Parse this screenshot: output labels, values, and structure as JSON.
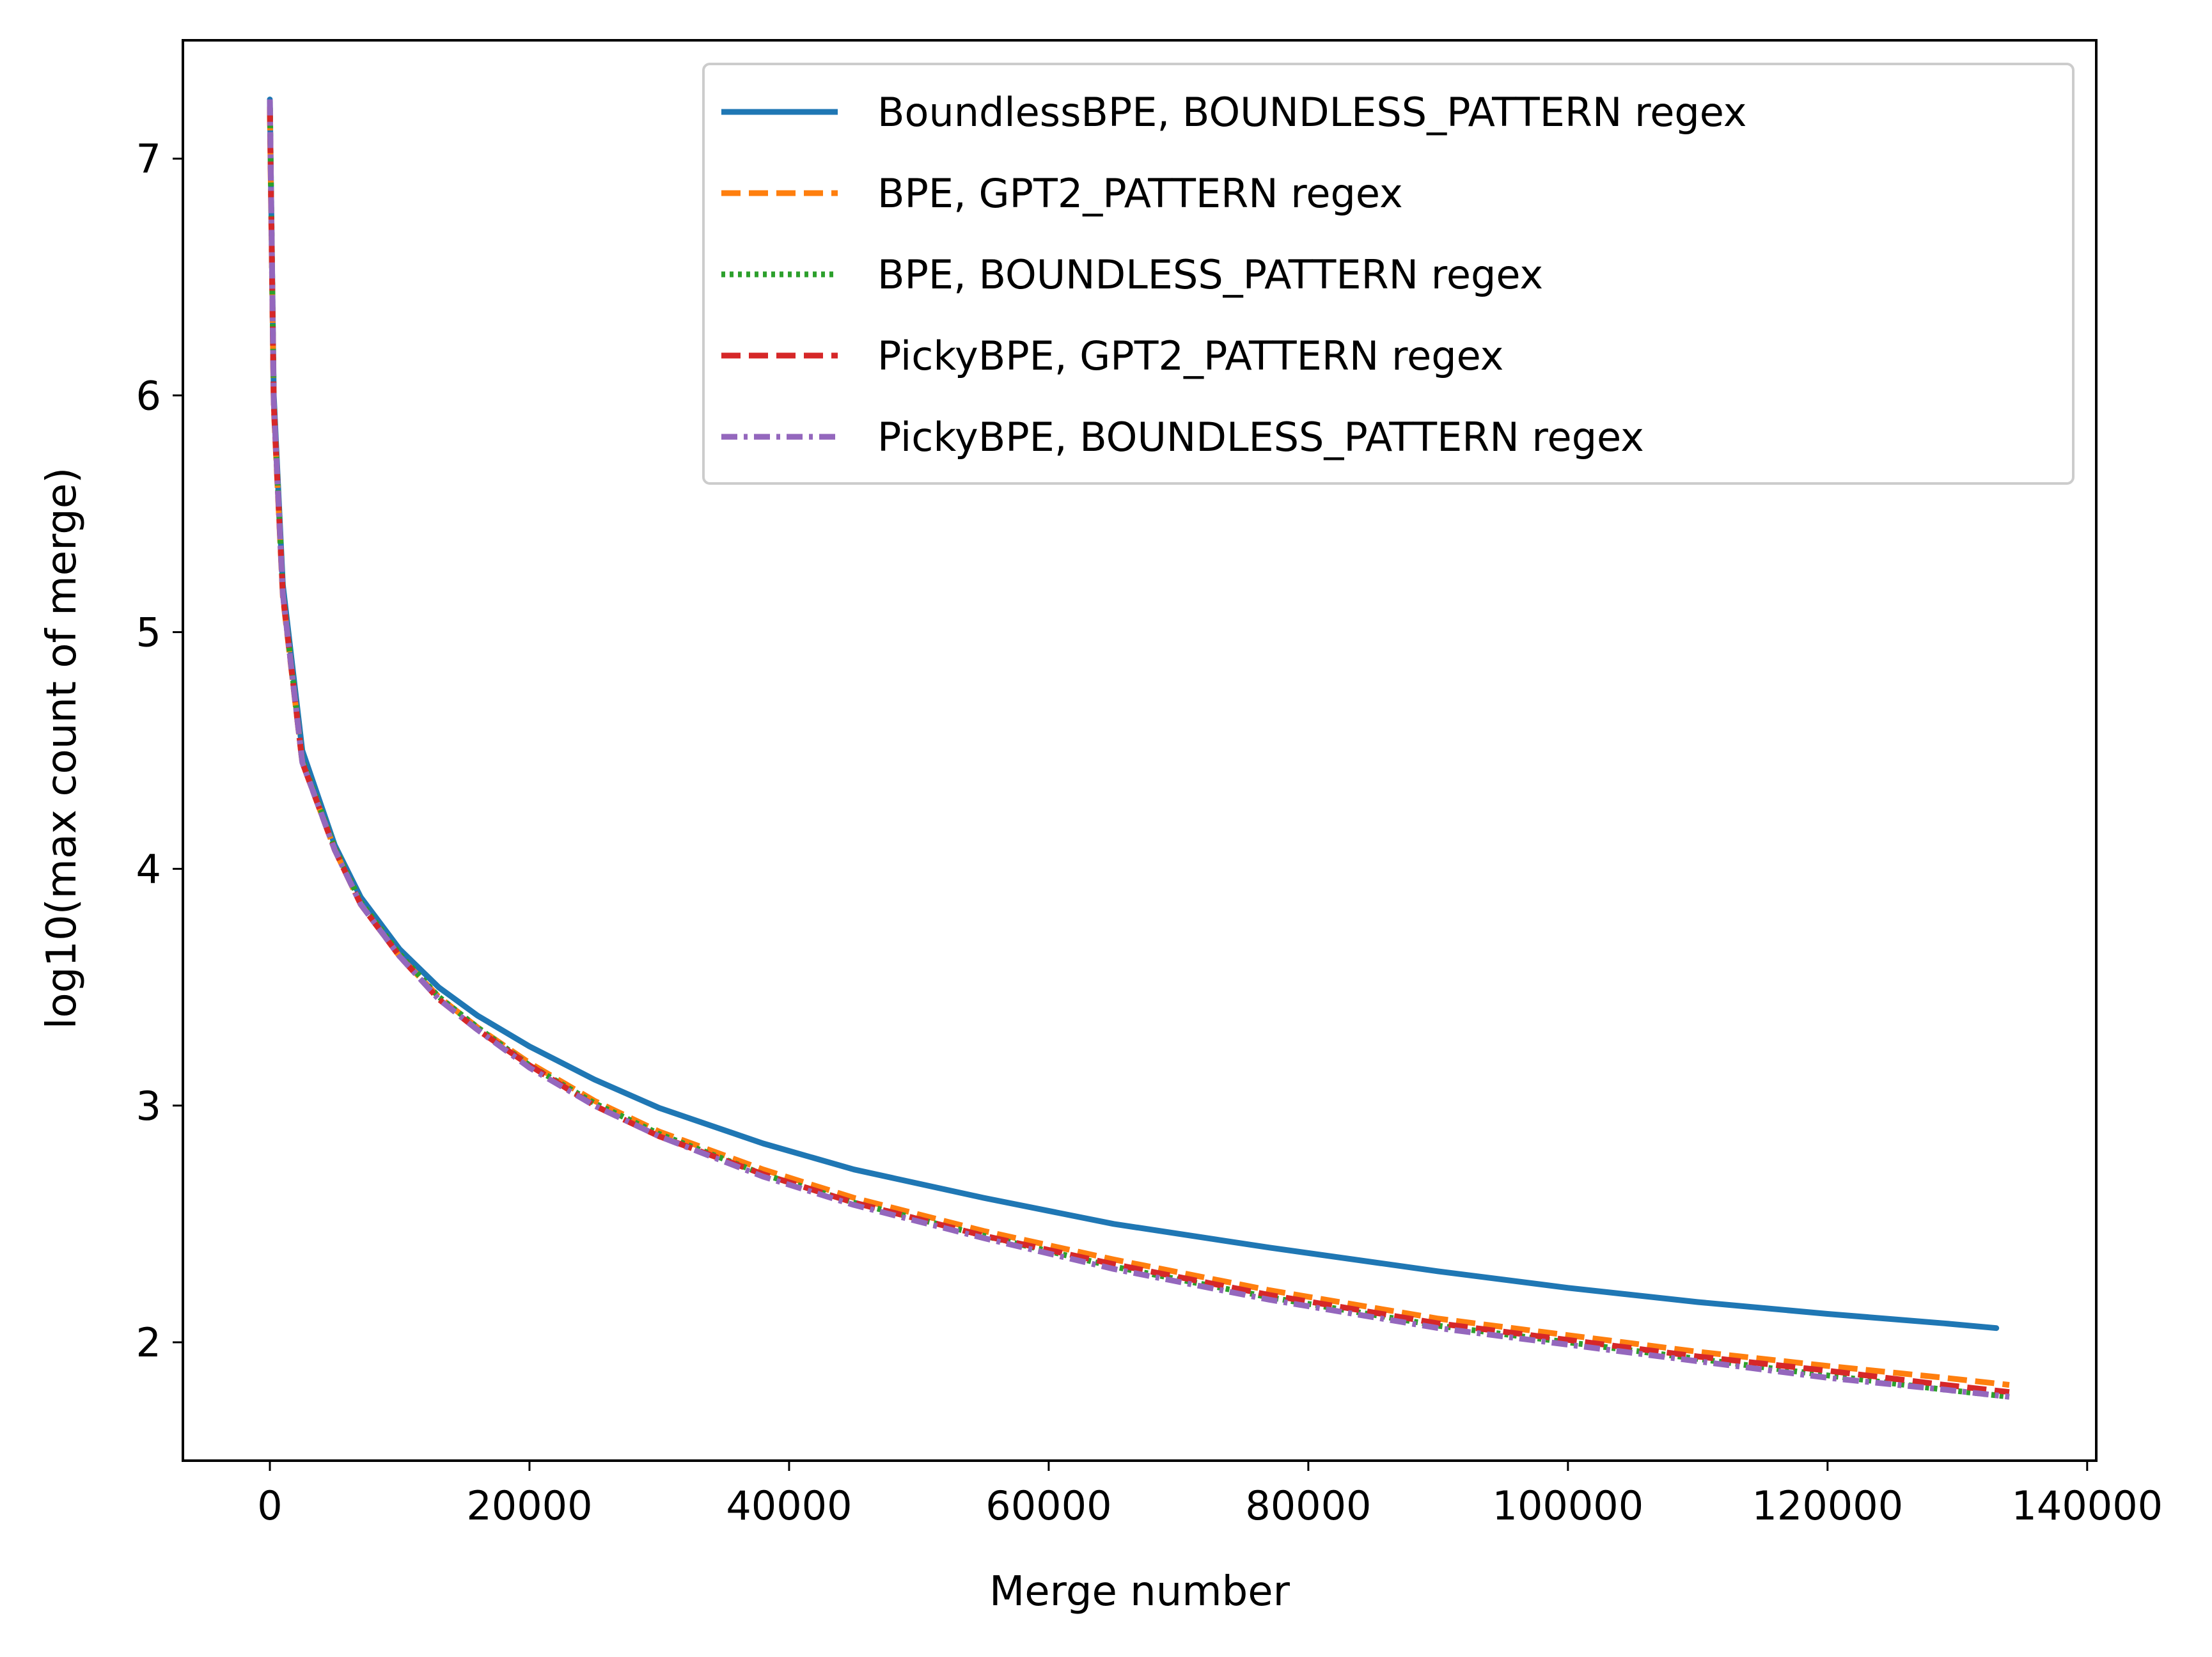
{
  "chart_data": {
    "type": "line",
    "title": "",
    "xlabel": "Merge number",
    "ylabel": "log10(max count of merge)",
    "xlim": [
      -6700,
      140700
    ],
    "ylim": [
      1.5,
      7.5
    ],
    "xticks": [
      0,
      20000,
      40000,
      60000,
      80000,
      100000,
      120000,
      140000
    ],
    "yticks": [
      2,
      3,
      4,
      5,
      6,
      7
    ],
    "grid": false,
    "legend_position": "top-right",
    "series": [
      {
        "name": "BoundlessBPE, BOUNDLESS_PATTERN regex",
        "color": "#1f77b4",
        "style": "solid",
        "x": [
          0,
          300,
          1000,
          2500,
          5000,
          7000,
          10000,
          13000,
          16000,
          20000,
          25000,
          30000,
          38000,
          45000,
          55000,
          65000,
          77000,
          90000,
          100000,
          110000,
          120000,
          129000,
          133000
        ],
        "y": [
          7.25,
          6.0,
          5.2,
          4.5,
          4.1,
          3.88,
          3.66,
          3.5,
          3.38,
          3.25,
          3.11,
          2.99,
          2.84,
          2.73,
          2.61,
          2.5,
          2.4,
          2.3,
          2.23,
          2.17,
          2.12,
          2.08,
          2.06
        ]
      },
      {
        "name": "BPE, GPT2_PATTERN regex",
        "color": "#ff7f0e",
        "style": "dashed",
        "x": [
          0,
          300,
          1000,
          2500,
          5000,
          7000,
          10000,
          13000,
          16000,
          20000,
          25000,
          30000,
          38000,
          45000,
          55000,
          65000,
          77000,
          90000,
          100000,
          110000,
          120000,
          129000,
          134000
        ],
        "y": [
          7.2,
          5.95,
          5.15,
          4.45,
          4.08,
          3.85,
          3.63,
          3.46,
          3.33,
          3.18,
          3.02,
          2.89,
          2.73,
          2.61,
          2.47,
          2.35,
          2.22,
          2.1,
          2.03,
          1.96,
          1.9,
          1.85,
          1.82
        ]
      },
      {
        "name": "BPE, BOUNDLESS_PATTERN regex",
        "color": "#2ca02c",
        "style": "dotted",
        "x": [
          0,
          300,
          1000,
          2500,
          5000,
          7000,
          10000,
          13000,
          16000,
          20000,
          25000,
          30000,
          38000,
          45000,
          55000,
          65000,
          77000,
          90000,
          100000,
          110000,
          120000,
          129000,
          134000
        ],
        "y": [
          7.25,
          5.98,
          5.17,
          4.46,
          4.09,
          3.86,
          3.64,
          3.46,
          3.33,
          3.17,
          3.01,
          2.88,
          2.71,
          2.59,
          2.45,
          2.32,
          2.19,
          2.07,
          2.0,
          1.93,
          1.86,
          1.8,
          1.77
        ]
      },
      {
        "name": "PickyBPE, GPT2_PATTERN regex",
        "color": "#d62728",
        "style": "dashed",
        "x": [
          0,
          300,
          1000,
          2500,
          5000,
          7000,
          10000,
          13000,
          16000,
          20000,
          25000,
          30000,
          38000,
          45000,
          55000,
          65000,
          77000,
          90000,
          100000,
          110000,
          120000,
          129000,
          134000
        ],
        "y": [
          7.22,
          5.96,
          5.16,
          4.45,
          4.08,
          3.85,
          3.63,
          3.45,
          3.32,
          3.17,
          3.0,
          2.87,
          2.71,
          2.59,
          2.45,
          2.33,
          2.2,
          2.08,
          2.01,
          1.94,
          1.88,
          1.82,
          1.79
        ]
      },
      {
        "name": "PickyBPE, BOUNDLESS_PATTERN regex",
        "color": "#9467bd",
        "style": "dashdot",
        "x": [
          0,
          300,
          1000,
          2500,
          5000,
          7000,
          10000,
          13000,
          16000,
          20000,
          25000,
          30000,
          38000,
          45000,
          55000,
          65000,
          77000,
          90000,
          100000,
          110000,
          120000,
          129000,
          134000
        ],
        "y": [
          7.25,
          5.97,
          5.16,
          4.45,
          4.08,
          3.85,
          3.63,
          3.45,
          3.32,
          3.16,
          3.0,
          2.87,
          2.7,
          2.58,
          2.44,
          2.31,
          2.18,
          2.06,
          1.99,
          1.92,
          1.85,
          1.8,
          1.77
        ]
      }
    ]
  }
}
